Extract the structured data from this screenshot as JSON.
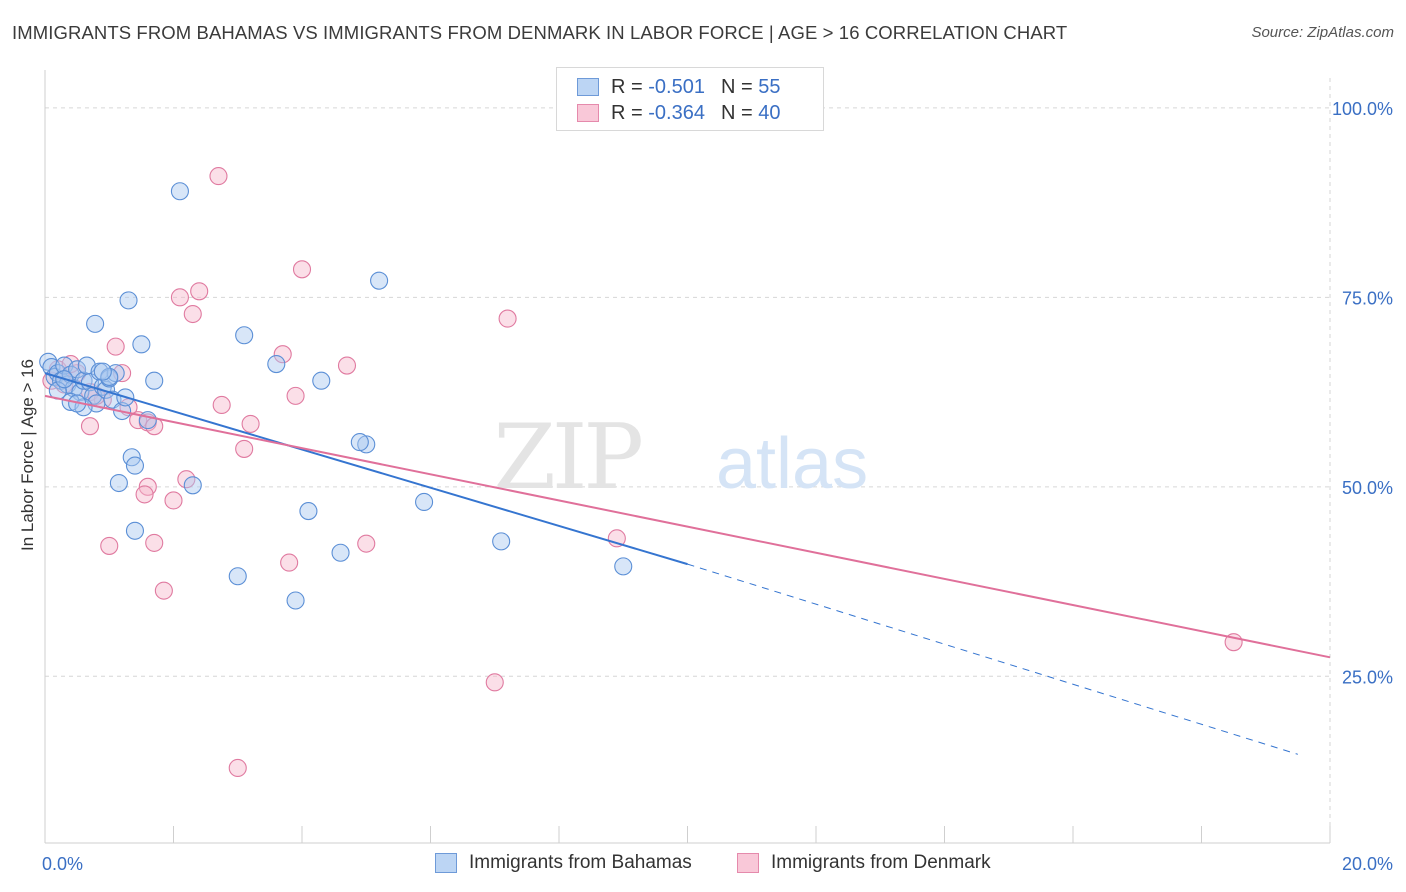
{
  "title": "IMMIGRANTS FROM BAHAMAS VS IMMIGRANTS FROM DENMARK IN LABOR FORCE | AGE > 16 CORRELATION CHART",
  "source": "Source: ZipAtlas.com",
  "watermark": {
    "zip": "ZIP",
    "atlas": "atlas"
  },
  "legend": {
    "r_label": "R =",
    "n_label": "N =",
    "rows": [
      {
        "r": "-0.501",
        "n": "55"
      },
      {
        "r": "-0.364",
        "n": "40"
      }
    ]
  },
  "colors": {
    "bahamas_fill": "#a8c8f0",
    "bahamas_stroke": "#5b8fd6",
    "bahamas_line": "#3575d0",
    "denmark_fill": "#f7b8cc",
    "denmark_stroke": "#e07aa0",
    "denmark_line": "#e0709a",
    "axis_label": "#3a6fc4",
    "grid": "#d6d6d6"
  },
  "chart_data": {
    "type": "scatter",
    "title": "IMMIGRANTS FROM BAHAMAS VS IMMIGRANTS FROM DENMARK IN LABOR FORCE | AGE > 16 CORRELATION CHART",
    "xlabel": "",
    "ylabel": "In Labor Force | Age > 16",
    "xlim": [
      0,
      20
    ],
    "ylim": [
      3,
      105
    ],
    "x_tick_labels": [
      "0.0%",
      "20.0%"
    ],
    "y_ticks": [
      25,
      50,
      75,
      100
    ],
    "y_tick_labels": [
      "25.0%",
      "50.0%",
      "75.0%",
      "100.0%"
    ],
    "grid": true,
    "legend_position": "top-center",
    "series": [
      {
        "name": "Immigrants from Bahamas",
        "r": -0.501,
        "n": 55,
        "trend": {
          "x0": 0,
          "y0": 65.0,
          "x1": 10,
          "y1": 39.8,
          "dashed_to_x": 19.5,
          "dashed_to_y": 14.7
        },
        "points": [
          [
            0.05,
            66.5
          ],
          [
            0.1,
            65.8
          ],
          [
            0.15,
            64.5
          ],
          [
            0.2,
            65.0
          ],
          [
            0.25,
            64.0
          ],
          [
            0.3,
            66.0
          ],
          [
            0.35,
            63.5
          ],
          [
            0.4,
            64.8
          ],
          [
            0.45,
            63.0
          ],
          [
            0.5,
            65.5
          ],
          [
            0.55,
            62.5
          ],
          [
            0.6,
            64.0
          ],
          [
            0.65,
            66.0
          ],
          [
            0.7,
            63.8
          ],
          [
            0.75,
            62.0
          ],
          [
            0.8,
            61.0
          ],
          [
            0.85,
            65.2
          ],
          [
            0.9,
            63.2
          ],
          [
            0.95,
            62.8
          ],
          [
            1.0,
            64.3
          ],
          [
            1.05,
            61.5
          ],
          [
            1.1,
            65.0
          ],
          [
            1.2,
            60.0
          ],
          [
            0.4,
            61.2
          ],
          [
            0.2,
            62.7
          ],
          [
            0.6,
            60.5
          ],
          [
            0.78,
            71.5
          ],
          [
            1.3,
            74.6
          ],
          [
            1.5,
            68.8
          ],
          [
            2.1,
            89.0
          ],
          [
            3.1,
            70.0
          ],
          [
            3.6,
            66.2
          ],
          [
            4.3,
            64.0
          ],
          [
            5.2,
            77.2
          ],
          [
            1.6,
            58.8
          ],
          [
            1.35,
            53.9
          ],
          [
            1.4,
            52.8
          ],
          [
            1.15,
            50.5
          ],
          [
            2.3,
            50.2
          ],
          [
            4.1,
            46.8
          ],
          [
            5.0,
            55.6
          ],
          [
            4.9,
            55.9
          ],
          [
            5.9,
            48.0
          ],
          [
            7.1,
            42.8
          ],
          [
            9.0,
            39.5
          ],
          [
            1.4,
            44.2
          ],
          [
            3.0,
            38.2
          ],
          [
            3.9,
            35.0
          ],
          [
            4.6,
            41.3
          ],
          [
            1.0,
            64.5
          ],
          [
            1.7,
            64.0
          ],
          [
            0.3,
            64.2
          ],
          [
            0.5,
            61.0
          ],
          [
            1.25,
            61.8
          ],
          [
            0.9,
            65.2
          ]
        ]
      },
      {
        "name": "Immigrants from Denmark",
        "r": -0.364,
        "n": 40,
        "trend": {
          "x0": 0,
          "y0": 62.0,
          "x1": 20,
          "y1": 27.5
        },
        "points": [
          [
            0.1,
            64.0
          ],
          [
            0.3,
            63.5
          ],
          [
            0.5,
            65.0
          ],
          [
            0.7,
            62.5
          ],
          [
            0.9,
            61.5
          ],
          [
            1.1,
            68.5
          ],
          [
            1.2,
            65.0
          ],
          [
            1.3,
            60.5
          ],
          [
            1.45,
            58.8
          ],
          [
            1.6,
            58.5
          ],
          [
            0.7,
            58.0
          ],
          [
            2.1,
            75.0
          ],
          [
            2.3,
            72.8
          ],
          [
            2.4,
            75.8
          ],
          [
            2.7,
            91.0
          ],
          [
            2.75,
            60.8
          ],
          [
            3.2,
            58.3
          ],
          [
            3.1,
            55.0
          ],
          [
            3.7,
            67.5
          ],
          [
            3.9,
            62.0
          ],
          [
            4.0,
            78.7
          ],
          [
            4.7,
            66.0
          ],
          [
            2.2,
            51.0
          ],
          [
            1.6,
            50.0
          ],
          [
            1.55,
            49.0
          ],
          [
            2.0,
            48.2
          ],
          [
            1.0,
            42.2
          ],
          [
            1.7,
            42.6
          ],
          [
            1.85,
            36.3
          ],
          [
            3.8,
            40.0
          ],
          [
            5.0,
            42.5
          ],
          [
            7.0,
            24.2
          ],
          [
            7.2,
            72.2
          ],
          [
            3.0,
            12.9
          ],
          [
            8.9,
            43.2
          ],
          [
            18.5,
            29.5
          ],
          [
            0.2,
            65.5
          ],
          [
            0.4,
            66.2
          ],
          [
            0.8,
            62.0
          ],
          [
            1.7,
            58.0
          ]
        ]
      }
    ]
  }
}
